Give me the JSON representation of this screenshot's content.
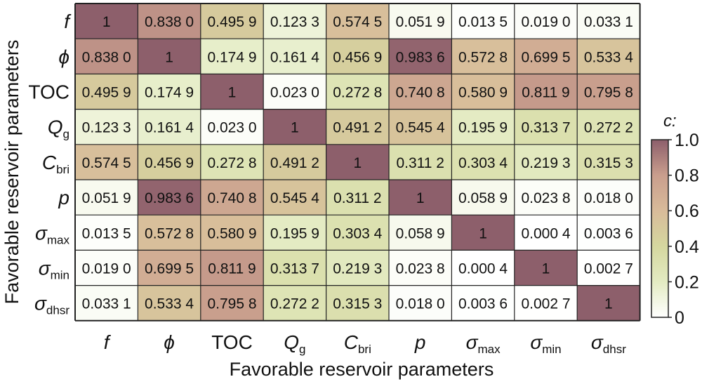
{
  "chart_data": {
    "type": "heatmap",
    "xlabel": "Favorable reservoir parameters",
    "ylabel": "Favorable reservoir parameters",
    "labels": [
      {
        "base": "f",
        "sub": ""
      },
      {
        "base": "ϕ",
        "sub": ""
      },
      {
        "base": "TOC",
        "sub": ""
      },
      {
        "base": "Q",
        "sub": "g"
      },
      {
        "base": "C",
        "sub": "bri"
      },
      {
        "base": "p",
        "sub": ""
      },
      {
        "base": "σ",
        "sub": "max"
      },
      {
        "base": "σ",
        "sub": "min"
      },
      {
        "base": "σ",
        "sub": "dhsr"
      }
    ],
    "values": [
      [
        1,
        0.838,
        0.4959,
        0.1233,
        0.5745,
        0.0519,
        0.0135,
        0.019,
        0.0331
      ],
      [
        0.838,
        1,
        0.1749,
        0.1614,
        0.4569,
        0.9836,
        0.5728,
        0.6995,
        0.5334
      ],
      [
        0.4959,
        0.1749,
        1,
        0.023,
        0.2728,
        0.7408,
        0.5809,
        0.8119,
        0.7958
      ],
      [
        0.1233,
        0.1614,
        0.023,
        1,
        0.4912,
        0.5454,
        0.1959,
        0.3137,
        0.2722
      ],
      [
        0.5745,
        0.4569,
        0.2728,
        0.4912,
        1,
        0.3112,
        0.3034,
        0.2193,
        0.3153
      ],
      [
        0.0519,
        0.9836,
        0.7408,
        0.5454,
        0.3112,
        1,
        0.0589,
        0.0238,
        0.018
      ],
      [
        0.0135,
        0.5728,
        0.5809,
        0.1959,
        0.3034,
        0.0589,
        1,
        0.0004,
        0.0036
      ],
      [
        0.019,
        0.6995,
        0.8119,
        0.3137,
        0.2193,
        0.0238,
        0.0004,
        1,
        0.0027
      ],
      [
        0.0331,
        0.5334,
        0.7958,
        0.2722,
        0.3153,
        0.018,
        0.0036,
        0.0027,
        1
      ]
    ],
    "cell_text": [
      [
        "1",
        "0.838 0",
        "0.495 9",
        "0.123 3",
        "0.574 5",
        "0.051 9",
        "0.013 5",
        "0.019 0",
        "0.033 1"
      ],
      [
        "0.838 0",
        "1",
        "0.174 9",
        "0.161 4",
        "0.456 9",
        "0.983 6",
        "0.572 8",
        "0.699 5",
        "0.533 4"
      ],
      [
        "0.495 9",
        "0.174 9",
        "1",
        "0.023 0",
        "0.272 8",
        "0.740 8",
        "0.580 9",
        "0.811 9",
        "0.795 8"
      ],
      [
        "0.123 3",
        "0.161 4",
        "0.023 0",
        "1",
        "0.491 2",
        "0.545 4",
        "0.195 9",
        "0.313 7",
        "0.272 2"
      ],
      [
        "0.574 5",
        "0.456 9",
        "0.272 8",
        "0.491 2",
        "1",
        "0.311 2",
        "0.303 4",
        "0.219 3",
        "0.315 3"
      ],
      [
        "0.051 9",
        "0.983 6",
        "0.740 8",
        "0.545 4",
        "0.311 2",
        "1",
        "0.058 9",
        "0.023 8",
        "0.018 0"
      ],
      [
        "0.013 5",
        "0.572 8",
        "0.580 9",
        "0.195 9",
        "0.303 4",
        "0.058 9",
        "1",
        "0.000 4",
        "0.003 6"
      ],
      [
        "0.019 0",
        "0.699 5",
        "0.811 9",
        "0.313 7",
        "0.219 3",
        "0.023 8",
        "0.000 4",
        "1",
        "0.002 7"
      ],
      [
        "0.033 1",
        "0.533 4",
        "0.795 8",
        "0.272 2",
        "0.315 3",
        "0.018 0",
        "0.003 6",
        "0.002 7",
        "1"
      ]
    ],
    "colorbar": {
      "title": "c:",
      "range": [
        0,
        1
      ],
      "ticks": [
        0,
        0.2,
        0.4,
        0.6,
        0.8,
        1.0
      ],
      "tick_labels": [
        "0",
        "0.2",
        "0.4",
        "0.6",
        "0.8",
        "1.0"
      ],
      "colors": [
        "#ffffff",
        "#e3ebc2",
        "#d5d79f",
        "#d8bb9a",
        "#c99e8d",
        "#8d5f6b"
      ]
    }
  }
}
